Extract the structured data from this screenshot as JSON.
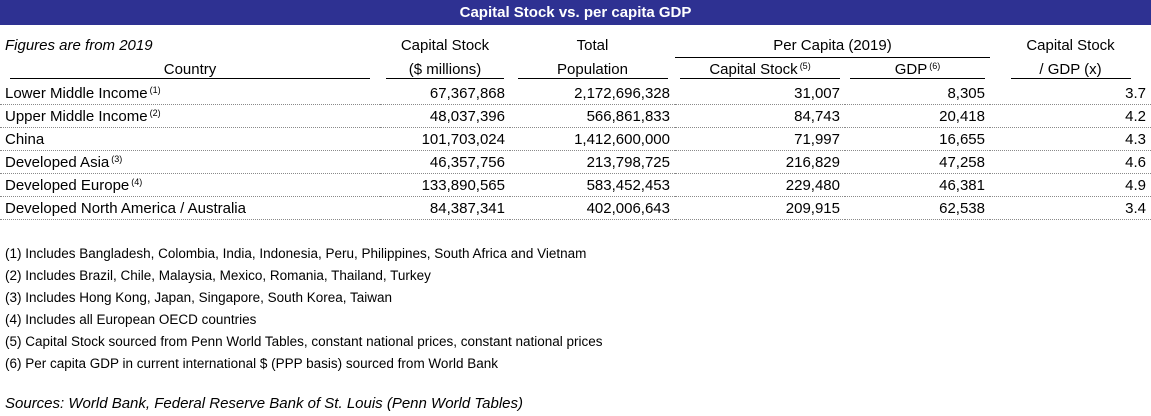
{
  "title": "Capital Stock vs. per capita GDP",
  "header": {
    "subtitle": "Figures are from 2019",
    "capital_stock": "Capital Stock",
    "capital_stock_unit": "($ millions)",
    "total": "Total",
    "population": "Population",
    "per_capita_group": "Per Capita (2019)",
    "pc_capital_stock": "Capital Stock",
    "pc_capital_stock_note": "(5)",
    "gdp": "GDP",
    "gdp_note": "(6)",
    "ratio_line1": "Capital Stock",
    "ratio_line2": "/ GDP (x)",
    "country": "Country"
  },
  "rows": [
    {
      "country": "Lower Middle Income",
      "note": "(1)",
      "capital_stock": "67,367,868",
      "population": "2,172,696,328",
      "pc_capital_stock": "31,007",
      "pc_gdp": "8,305",
      "ratio": "3.7"
    },
    {
      "country": "Upper Middle Income",
      "note": "(2)",
      "capital_stock": "48,037,396",
      "population": "566,861,833",
      "pc_capital_stock": "84,743",
      "pc_gdp": "20,418",
      "ratio": "4.2"
    },
    {
      "country": "China",
      "note": "",
      "capital_stock": "101,703,024",
      "population": "1,412,600,000",
      "pc_capital_stock": "71,997",
      "pc_gdp": "16,655",
      "ratio": "4.3"
    },
    {
      "country": "Developed Asia",
      "note": "(3)",
      "capital_stock": "46,357,756",
      "population": "213,798,725",
      "pc_capital_stock": "216,829",
      "pc_gdp": "47,258",
      "ratio": "4.6"
    },
    {
      "country": "Developed Europe",
      "note": "(4)",
      "capital_stock": "133,890,565",
      "population": "583,452,453",
      "pc_capital_stock": "229,480",
      "pc_gdp": "46,381",
      "ratio": "4.9"
    },
    {
      "country": "Developed North America / Australia",
      "note": "",
      "capital_stock": "84,387,341",
      "population": "402,006,643",
      "pc_capital_stock": "209,915",
      "pc_gdp": "62,538",
      "ratio": "3.4"
    }
  ],
  "notes": [
    "(1) Includes Bangladesh, Colombia, India, Indonesia, Peru, Philippines, South Africa and Vietnam",
    "(2) Includes Brazil, Chile, Malaysia, Mexico, Romania, Thailand, Turkey",
    "(3) Includes Hong Kong, Japan, Singapore, South Korea, Taiwan",
    "(4) Includes all European OECD countries",
    "(5) Capital Stock sourced from Penn World Tables, constant national prices, constant national prices",
    "(6) Per capita GDP in current international $ (PPP basis) sourced from World Bank"
  ],
  "sources": "Sources: World Bank, Federal Reserve Bank of St. Louis (Penn World Tables)"
}
